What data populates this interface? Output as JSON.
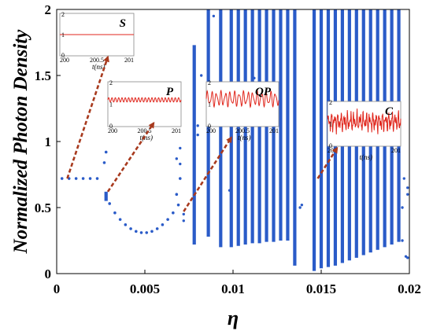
{
  "chart_data": {
    "type": "scatter",
    "title": "",
    "xlabel": "η",
    "ylabel": "Normalized Photon Density",
    "xlim": [
      0,
      0.02
    ],
    "ylim": [
      0,
      2
    ],
    "x_ticks": [
      "0",
      "0.005",
      "0.01",
      "0.015",
      "0.02"
    ],
    "y_ticks": [
      "0",
      "0.5",
      "1",
      "1.5",
      "2"
    ],
    "grid": false,
    "marker_color": "#2a5bc8",
    "arrow_color": "#a83a1e",
    "regimes": [
      {
        "label": "S",
        "x_range": [
          0,
          0.0025
        ],
        "y": 0.72
      },
      {
        "label": "P",
        "x_range": [
          0.0025,
          0.0072
        ],
        "y_center": 0.5
      },
      {
        "label": "QP",
        "x_range": [
          0.0072,
          0.0138
        ]
      },
      {
        "label": "C",
        "x_range": [
          0.0145,
          0.0195
        ]
      }
    ],
    "fixed_points": [
      {
        "x": 0.0003,
        "y": 0.72
      },
      {
        "x": 0.0007,
        "y": 0.72
      },
      {
        "x": 0.0011,
        "y": 0.72
      },
      {
        "x": 0.0015,
        "y": 0.72
      },
      {
        "x": 0.0019,
        "y": 0.72
      },
      {
        "x": 0.0023,
        "y": 0.72
      }
    ],
    "period_upper_branch": [
      {
        "x": 0.0027,
        "y": 0.84
      },
      {
        "x": 0.0028,
        "y": 0.92
      },
      {
        "x": 0.0068,
        "y": 0.6
      },
      {
        "x": 0.007,
        "y": 0.72
      }
    ],
    "period_lower_branch": [
      {
        "x": 0.0028,
        "y": 0.6
      },
      {
        "x": 0.003,
        "y": 0.53
      },
      {
        "x": 0.0033,
        "y": 0.46
      },
      {
        "x": 0.0036,
        "y": 0.41
      },
      {
        "x": 0.0039,
        "y": 0.37
      },
      {
        "x": 0.0042,
        "y": 0.34
      },
      {
        "x": 0.0045,
        "y": 0.32
      },
      {
        "x": 0.0048,
        "y": 0.31
      },
      {
        "x": 0.0051,
        "y": 0.31
      },
      {
        "x": 0.0054,
        "y": 0.32
      },
      {
        "x": 0.0057,
        "y": 0.34
      },
      {
        "x": 0.006,
        "y": 0.37
      },
      {
        "x": 0.0063,
        "y": 0.41
      },
      {
        "x": 0.0066,
        "y": 0.46
      },
      {
        "x": 0.0069,
        "y": 0.52
      }
    ],
    "vertical_bands": [
      {
        "x": 0.0028,
        "y_min": 0.55,
        "y_max": 0.62
      },
      {
        "x": 0.0078,
        "y_min": 0.22,
        "y_max": 1.73
      },
      {
        "x": 0.0086,
        "y_min": 0.28,
        "y_max": 2.0
      },
      {
        "x": 0.0093,
        "y_min": 0.2,
        "y_max": 2.0
      },
      {
        "x": 0.0099,
        "y_min": 0.2,
        "y_max": 2.0
      },
      {
        "x": 0.0103,
        "y_min": 0.21,
        "y_max": 2.0
      },
      {
        "x": 0.0107,
        "y_min": 0.22,
        "y_max": 2.0
      },
      {
        "x": 0.0111,
        "y_min": 0.23,
        "y_max": 2.0
      },
      {
        "x": 0.0115,
        "y_min": 0.23,
        "y_max": 2.0
      },
      {
        "x": 0.0119,
        "y_min": 0.24,
        "y_max": 2.0
      },
      {
        "x": 0.0123,
        "y_min": 0.24,
        "y_max": 2.0
      },
      {
        "x": 0.0127,
        "y_min": 0.25,
        "y_max": 2.0
      },
      {
        "x": 0.0131,
        "y_min": 0.25,
        "y_max": 2.0
      },
      {
        "x": 0.0135,
        "y_min": 0.06,
        "y_max": 2.0
      },
      {
        "x": 0.0146,
        "y_min": 0.02,
        "y_max": 2.0
      },
      {
        "x": 0.015,
        "y_min": 0.04,
        "y_max": 2.0
      },
      {
        "x": 0.0154,
        "y_min": 0.05,
        "y_max": 2.0
      },
      {
        "x": 0.0158,
        "y_min": 0.06,
        "y_max": 2.0
      },
      {
        "x": 0.0162,
        "y_min": 0.08,
        "y_max": 2.0
      },
      {
        "x": 0.0166,
        "y_min": 0.1,
        "y_max": 2.0
      },
      {
        "x": 0.017,
        "y_min": 0.12,
        "y_max": 2.0
      },
      {
        "x": 0.0174,
        "y_min": 0.14,
        "y_max": 2.0
      },
      {
        "x": 0.0178,
        "y_min": 0.16,
        "y_max": 2.0
      },
      {
        "x": 0.0182,
        "y_min": 0.18,
        "y_max": 2.0
      },
      {
        "x": 0.0186,
        "y_min": 0.2,
        "y_max": 2.0
      },
      {
        "x": 0.019,
        "y_min": 0.22,
        "y_max": 2.0
      },
      {
        "x": 0.0194,
        "y_min": 0.24,
        "y_max": 2.0
      }
    ],
    "scattered_points": [
      {
        "x": 0.0072,
        "y": 0.4
      },
      {
        "x": 0.0072,
        "y": 0.45
      },
      {
        "x": 0.008,
        "y": 1.12
      },
      {
        "x": 0.008,
        "y": 1.05
      },
      {
        "x": 0.0082,
        "y": 1.5
      },
      {
        "x": 0.007,
        "y": 0.95
      },
      {
        "x": 0.007,
        "y": 0.83
      },
      {
        "x": 0.0068,
        "y": 0.87
      },
      {
        "x": 0.0089,
        "y": 1.95
      },
      {
        "x": 0.0138,
        "y": 0.5
      },
      {
        "x": 0.0139,
        "y": 0.52
      },
      {
        "x": 0.0112,
        "y": 1.48
      },
      {
        "x": 0.0112,
        "y": 1.44
      },
      {
        "x": 0.0098,
        "y": 0.63
      },
      {
        "x": 0.0196,
        "y": 0.5
      },
      {
        "x": 0.0196,
        "y": 0.25
      },
      {
        "x": 0.0197,
        "y": 0.72
      },
      {
        "x": 0.0199,
        "y": 0.65
      },
      {
        "x": 0.0199,
        "y": 0.6
      },
      {
        "x": 0.0198,
        "y": 0.13
      },
      {
        "x": 0.0199,
        "y": 0.12
      }
    ],
    "insets": [
      {
        "label": "S",
        "xlabel": "t(ns)",
        "x_ticks": [
          "200",
          "200.5",
          "201"
        ],
        "y_ticks": [
          "0",
          "1",
          "2"
        ],
        "signal": "constant",
        "level": 1.0,
        "arrow_from": {
          "x": 0.0006,
          "y": 0.72
        },
        "arrow_to": {
          "x": 0.0029,
          "y": 1.64
        }
      },
      {
        "label": "P",
        "xlabel": "t(ns)",
        "x_ticks": [
          "200",
          "200.5",
          "201"
        ],
        "y_ticks": [
          "0",
          "1",
          "2"
        ],
        "signal": "periodic",
        "level": 1.2,
        "amplitude": 0.1,
        "cycles": 22,
        "arrow_from": {
          "x": 0.0029,
          "y": 0.62
        },
        "arrow_to": {
          "x": 0.0055,
          "y": 1.14
        }
      },
      {
        "label": "QP",
        "xlabel": "t(ns)",
        "x_ticks": [
          "200",
          "200.5",
          "201"
        ],
        "y_ticks": [
          "0",
          "1",
          "2"
        ],
        "signal": "quasi-periodic",
        "level": 1.25,
        "amplitude": 0.35,
        "cycles": 16,
        "arrow_from": {
          "x": 0.0072,
          "y": 0.47
        },
        "arrow_to": {
          "x": 0.0099,
          "y": 1.03
        }
      },
      {
        "label": "C",
        "xlabel": "t(ns)",
        "x_ticks": [
          "200",
          "201"
        ],
        "y_ticks": [
          "0",
          "1",
          "2"
        ],
        "signal": "chaotic",
        "level": 1.1,
        "amplitude": 0.5,
        "arrow_from": {
          "x": 0.0148,
          "y": 0.72
        },
        "arrow_to": {
          "x": 0.0159,
          "y": 0.95
        }
      }
    ]
  }
}
